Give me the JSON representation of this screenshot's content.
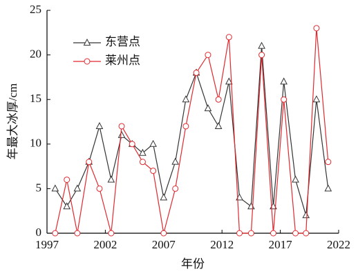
{
  "chart_data": {
    "type": "line",
    "x_label": "年份",
    "y_label": "年最大冰厚/cm",
    "x": [
      1997.7,
      1998.7,
      1999.6,
      2000.6,
      2001.5,
      2002.5,
      2003.4,
      2004.3,
      2005.2,
      2006.1,
      2007.0,
      2008.0,
      2008.9,
      2009.8,
      2010.8,
      2011.7,
      2012.6,
      2013.5,
      2014.5,
      2015.4,
      2016.4,
      2017.3,
      2018.3,
      2019.2,
      2020.1,
      2021.1
    ],
    "series": [
      {
        "name": "东营点",
        "color": "#333333",
        "marker": "triangle",
        "values": [
          5,
          3,
          5,
          8,
          12,
          6,
          11,
          10,
          9,
          10,
          4,
          8,
          15,
          18,
          14,
          12,
          17,
          4,
          3,
          21,
          3,
          17,
          6,
          2,
          15,
          5
        ]
      },
      {
        "name": "莱州点",
        "color": "#e0282e",
        "marker": "circle",
        "values": [
          0,
          6,
          0,
          8,
          5,
          0,
          12,
          10,
          8,
          7,
          0,
          5,
          12,
          18,
          20,
          15,
          22,
          0,
          0,
          20,
          0,
          15,
          0,
          0,
          23,
          8
        ]
      }
    ],
    "xlim": [
      1997,
      2022
    ],
    "xticks": [
      1997,
      2002,
      2007,
      2012,
      2017,
      2022
    ],
    "ylim": [
      0,
      25
    ],
    "yticks": [
      0,
      5,
      10,
      15,
      20,
      25
    ],
    "legend": "upper-left"
  }
}
